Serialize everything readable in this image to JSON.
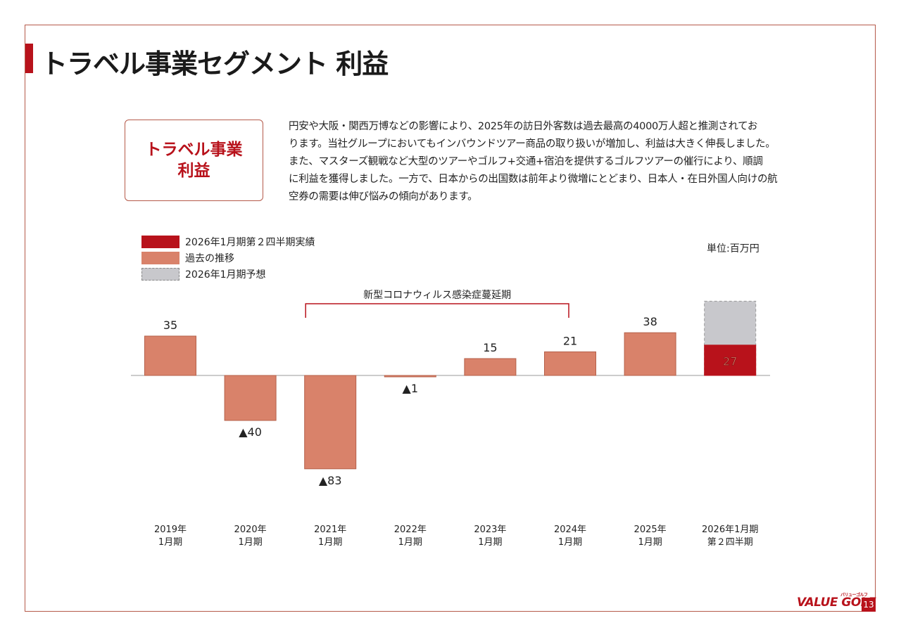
{
  "header": {
    "title": "トラベル事業セグメント 利益"
  },
  "segment_label": {
    "line1": "トラベル事業",
    "line2": "利益"
  },
  "description": {
    "lines": [
      "円安や大阪・関西万博などの影響により、2025年の訪日外客数は過去最高の4000万人超と推測されてお",
      "ります。当社グループにおいてもインバウンドツアー商品の取り扱いが増加し、利益は大きく伸長しました。",
      "また、マスターズ観戦など大型のツアーやゴルフ+交通+宿泊を提供するゴルフツアーの催行により、順調",
      "に利益を獲得しました。一方で、日本からの出国数は前年より微増にとどまり、日本人・在日外国人向けの航",
      "空券の需要は伸び悩みの傾向があります。"
    ]
  },
  "legend": {
    "items": [
      {
        "label": "2026年1月期第２四半期実績",
        "color": "#b8121b"
      },
      {
        "label": "過去の推移",
        "color": "#d9826a"
      },
      {
        "label": "2026年1月期予想",
        "color": "#c8c8cc"
      }
    ]
  },
  "unit": "単位:百万円",
  "chart_data": {
    "type": "bar",
    "categories": [
      [
        "2019年",
        "1月期"
      ],
      [
        "2020年",
        "1月期"
      ],
      [
        "2021年",
        "1月期"
      ],
      [
        "2022年",
        "1月期"
      ],
      [
        "2023年",
        "1月期"
      ],
      [
        "2024年",
        "1月期"
      ],
      [
        "2025年",
        "1月期"
      ],
      [
        "2026年1月期",
        "第２四半期"
      ]
    ],
    "values": [
      35,
      -40,
      -83,
      -1,
      15,
      21,
      38,
      27
    ],
    "value_labels": [
      "35",
      "▲40",
      "▲83",
      "▲1",
      "15",
      "21",
      "38",
      "27"
    ],
    "forecast": {
      "index": 7,
      "value": 66
    },
    "annotation": {
      "label": "新型コロナウィルス感染症蔓延期",
      "from_index": 2,
      "to_index": 5
    },
    "colors": {
      "past": "#d9826a",
      "past_stroke": "#b5604a",
      "actual": "#b8121b",
      "forecast": "#c8c8cc"
    }
  },
  "footer": {
    "logo": "VALUE GOLF",
    "logo_small": "バリューゴルフ",
    "page": "13"
  }
}
